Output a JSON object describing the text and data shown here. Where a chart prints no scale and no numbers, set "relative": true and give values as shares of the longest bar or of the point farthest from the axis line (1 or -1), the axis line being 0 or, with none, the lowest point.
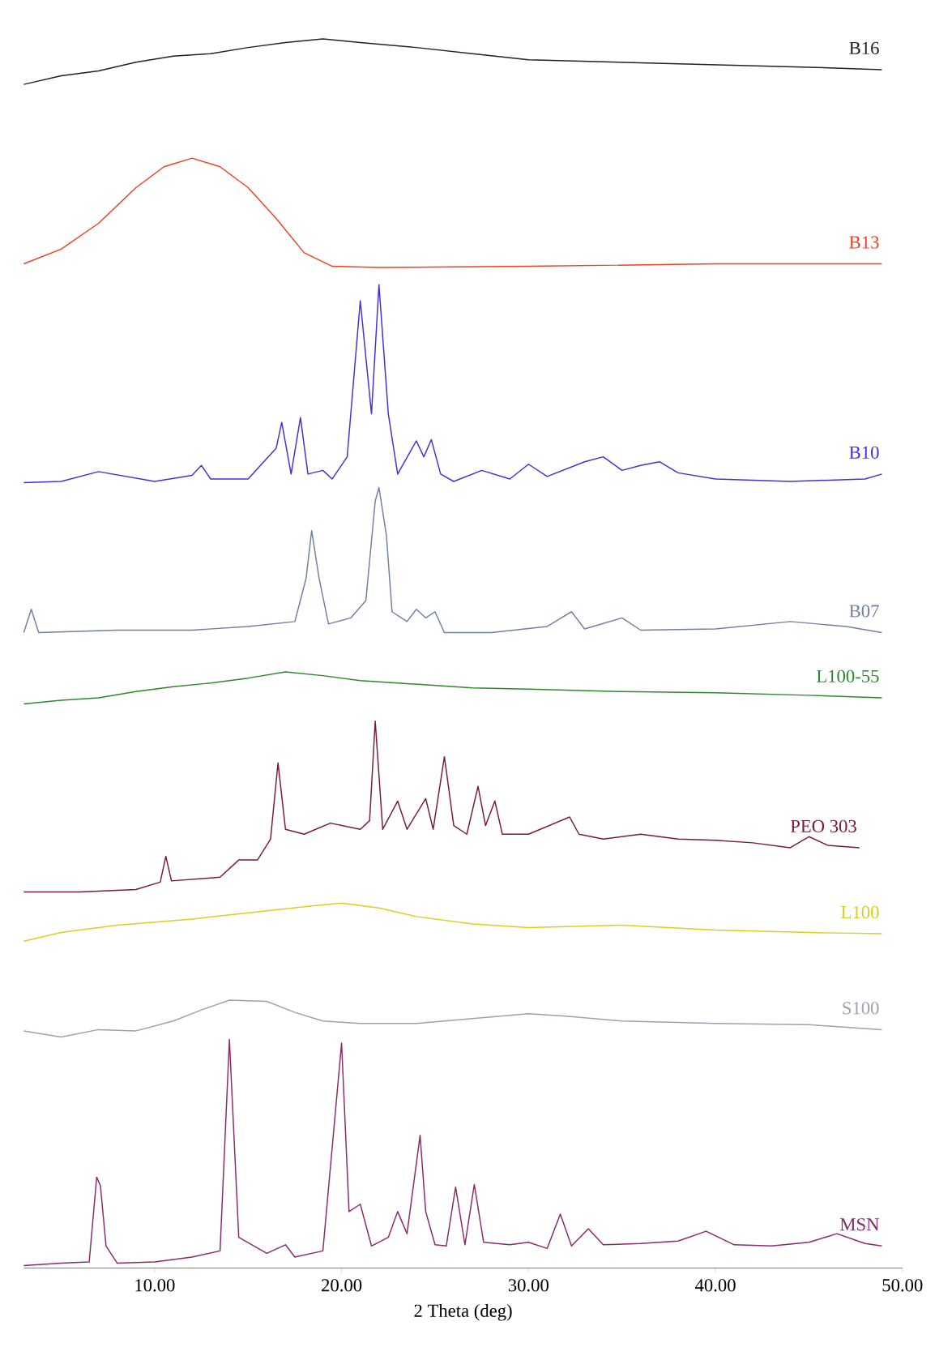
{
  "chart_data": {
    "type": "line",
    "relative": true,
    "xlabel": "2 Theta (deg)",
    "xlim": [
      3,
      50
    ],
    "xticks": [
      {
        "value": 10,
        "label": "10.00"
      },
      {
        "value": 20,
        "label": "20.00"
      },
      {
        "value": 30,
        "label": "30.00"
      },
      {
        "value": 40,
        "label": "40.00"
      },
      {
        "value": 50,
        "label": "50.00"
      }
    ],
    "grid": false,
    "legend": false,
    "tick_labels": "x",
    "series": [
      {
        "name": "B16",
        "color": "#222222",
        "x": [
          3,
          5,
          7,
          9,
          11,
          13,
          15,
          17,
          19,
          21,
          24,
          27,
          30,
          35,
          40,
          45,
          48.9
        ],
        "values": [
          0.963,
          0.97,
          0.974,
          0.981,
          0.986,
          0.988,
          0.993,
          0.997,
          1.0,
          0.997,
          0.993,
          0.988,
          0.983,
          0.981,
          0.979,
          0.977,
          0.975
        ]
      },
      {
        "name": "B13",
        "color": "#f04020",
        "x": [
          3,
          5,
          7,
          9,
          10.5,
          12,
          13.5,
          15,
          16.5,
          18,
          19.5,
          22,
          30,
          40,
          48.9
        ],
        "values": [
          0.817,
          0.829,
          0.85,
          0.879,
          0.896,
          0.903,
          0.896,
          0.879,
          0.854,
          0.826,
          0.815,
          0.814,
          0.815,
          0.817,
          0.817
        ]
      },
      {
        "name": "B10",
        "color": "#4030e0",
        "x": [
          3,
          5,
          7,
          10,
          12,
          12.5,
          13,
          15,
          16.5,
          16.8,
          17.3,
          17.8,
          18.2,
          19,
          19.5,
          20.3,
          21,
          21.6,
          22,
          22.5,
          23,
          24,
          24.4,
          24.8,
          25.3,
          26,
          27.5,
          29,
          30,
          31,
          33,
          34,
          35,
          36,
          37,
          38,
          40,
          44,
          48,
          48.9
        ],
        "values": [
          0.639,
          0.64,
          0.648,
          0.64,
          0.645,
          0.653,
          0.642,
          0.642,
          0.667,
          0.688,
          0.646,
          0.692,
          0.646,
          0.649,
          0.642,
          0.66,
          0.787,
          0.695,
          0.8,
          0.695,
          0.646,
          0.673,
          0.66,
          0.674,
          0.646,
          0.64,
          0.649,
          0.642,
          0.654,
          0.644,
          0.656,
          0.66,
          0.649,
          0.653,
          0.656,
          0.647,
          0.642,
          0.64,
          0.642,
          0.646
        ]
      },
      {
        "name": "B07",
        "color": "#7080a0",
        "x": [
          3,
          3.4,
          3.8,
          8,
          12,
          15,
          17.5,
          18.1,
          18.4,
          18.8,
          19.3,
          20.5,
          21.3,
          21.8,
          22,
          22.4,
          22.7,
          23.5,
          24,
          24.5,
          25,
          25.5,
          28,
          31,
          32.3,
          33,
          35,
          36,
          40,
          44,
          47,
          48.9
        ],
        "values": [
          0.517,
          0.536,
          0.517,
          0.519,
          0.519,
          0.522,
          0.526,
          0.561,
          0.6,
          0.561,
          0.524,
          0.529,
          0.543,
          0.624,
          0.635,
          0.596,
          0.534,
          0.526,
          0.536,
          0.529,
          0.534,
          0.517,
          0.517,
          0.522,
          0.534,
          0.52,
          0.529,
          0.519,
          0.52,
          0.526,
          0.522,
          0.517
        ]
      },
      {
        "name": "L100-55",
        "color": "#2a8a2a",
        "x": [
          3,
          5,
          7,
          9,
          11,
          13,
          15,
          17,
          19,
          21,
          24,
          27,
          30,
          35,
          40,
          45,
          48.9
        ],
        "values": [
          0.459,
          0.462,
          0.464,
          0.469,
          0.473,
          0.476,
          0.48,
          0.485,
          0.482,
          0.478,
          0.475,
          0.472,
          0.471,
          0.469,
          0.468,
          0.466,
          0.464
        ]
      },
      {
        "name": "PEO 303",
        "color": "#7a1a3a",
        "x": [
          3,
          6,
          9,
          10.3,
          10.6,
          10.9,
          13.5,
          14.5,
          15.5,
          16.2,
          16.6,
          17,
          18,
          19.4,
          21,
          21.5,
          21.8,
          22.2,
          23,
          23.5,
          24.5,
          24.9,
          25.5,
          26,
          26.7,
          27.3,
          27.7,
          28.2,
          28.6,
          30,
          32.2,
          32.7,
          34,
          36,
          38,
          40,
          42,
          44,
          45,
          46,
          47.7
        ],
        "values": [
          0.306,
          0.306,
          0.308,
          0.314,
          0.335,
          0.315,
          0.318,
          0.332,
          0.332,
          0.349,
          0.411,
          0.357,
          0.353,
          0.362,
          0.357,
          0.364,
          0.445,
          0.357,
          0.38,
          0.357,
          0.382,
          0.357,
          0.416,
          0.36,
          0.353,
          0.392,
          0.36,
          0.38,
          0.353,
          0.353,
          0.367,
          0.353,
          0.349,
          0.353,
          0.349,
          0.348,
          0.346,
          0.342,
          0.351,
          0.344,
          0.342
        ]
      },
      {
        "name": "L100",
        "color": "#d8d020",
        "x": [
          3,
          5,
          8,
          12,
          15,
          18,
          20,
          22,
          24,
          27,
          30,
          35,
          40,
          45,
          48.9
        ],
        "values": [
          0.266,
          0.273,
          0.279,
          0.284,
          0.289,
          0.294,
          0.297,
          0.293,
          0.286,
          0.28,
          0.277,
          0.279,
          0.275,
          0.273,
          0.272
        ]
      },
      {
        "name": "S100",
        "color": "#a0a0b0",
        "x": [
          3,
          5,
          7,
          9,
          11,
          12.5,
          14,
          16,
          17.5,
          19,
          21,
          24,
          27,
          30,
          32,
          35,
          40,
          45,
          48.9
        ],
        "values": [
          0.193,
          0.188,
          0.194,
          0.193,
          0.201,
          0.21,
          0.218,
          0.217,
          0.208,
          0.201,
          0.199,
          0.199,
          0.203,
          0.207,
          0.205,
          0.201,
          0.199,
          0.198,
          0.194
        ]
      },
      {
        "name": "MSN",
        "color": "#8b2a6a",
        "x": [
          3,
          5,
          6.5,
          6.9,
          7.1,
          7.4,
          8,
          10,
          12,
          13.5,
          14,
          14.5,
          16,
          17,
          17.5,
          19,
          20,
          20.4,
          21,
          21.6,
          22.5,
          23,
          23.5,
          24.2,
          24.5,
          25,
          25.6,
          26.1,
          26.6,
          27.1,
          27.6,
          29,
          30,
          31,
          31.7,
          32.3,
          33.2,
          34,
          36,
          38,
          39.5,
          41,
          43,
          45,
          46.5,
          48,
          48.9
        ],
        "values": [
          0.002,
          0.004,
          0.005,
          0.074,
          0.067,
          0.018,
          0.004,
          0.005,
          0.009,
          0.014,
          0.186,
          0.025,
          0.012,
          0.019,
          0.009,
          0.014,
          0.183,
          0.046,
          0.052,
          0.018,
          0.025,
          0.046,
          0.028,
          0.108,
          0.046,
          0.019,
          0.018,
          0.066,
          0.019,
          0.068,
          0.021,
          0.019,
          0.021,
          0.016,
          0.044,
          0.018,
          0.032,
          0.019,
          0.02,
          0.022,
          0.03,
          0.019,
          0.018,
          0.021,
          0.028,
          0.02,
          0.018
        ]
      }
    ]
  }
}
